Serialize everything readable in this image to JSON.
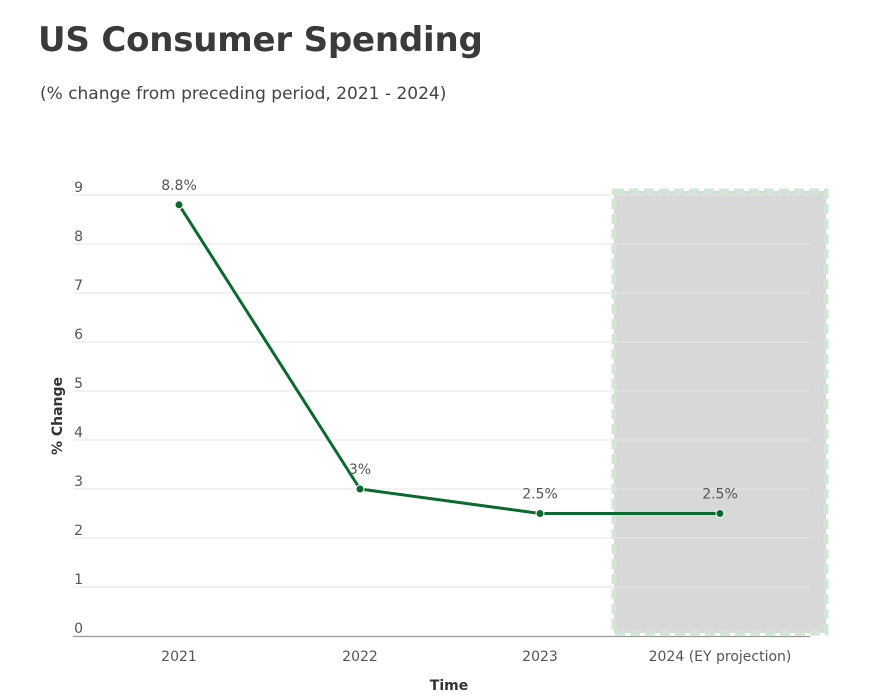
{
  "title": "US Consumer Spending",
  "subtitle": "(% change from preceding period, 2021 - 2024)",
  "chart_data": {
    "type": "line",
    "categories": [
      "2021",
      "2022",
      "2023",
      "2024 (EY projection)"
    ],
    "series": [
      {
        "values": [
          8.8,
          3,
          2.5,
          2.5
        ],
        "data_labels": [
          "8.8%",
          "3%",
          "2.5%",
          "2.5%"
        ]
      }
    ],
    "xlabel": "Time",
    "ylabel": "% Change",
    "ylim": [
      0,
      9
    ],
    "yticks": [
      "0",
      "1",
      "2",
      "3",
      "4",
      "5",
      "6",
      "7",
      "8",
      "9"
    ],
    "grid": true,
    "projection_band": {
      "category": "2024 (EY projection)",
      "fill": "#d8d8d8",
      "border": "#cfe8d3"
    },
    "colors": {
      "line": "#0b6b2e",
      "grid": "#e6e6e6",
      "axis": "#999999"
    }
  }
}
